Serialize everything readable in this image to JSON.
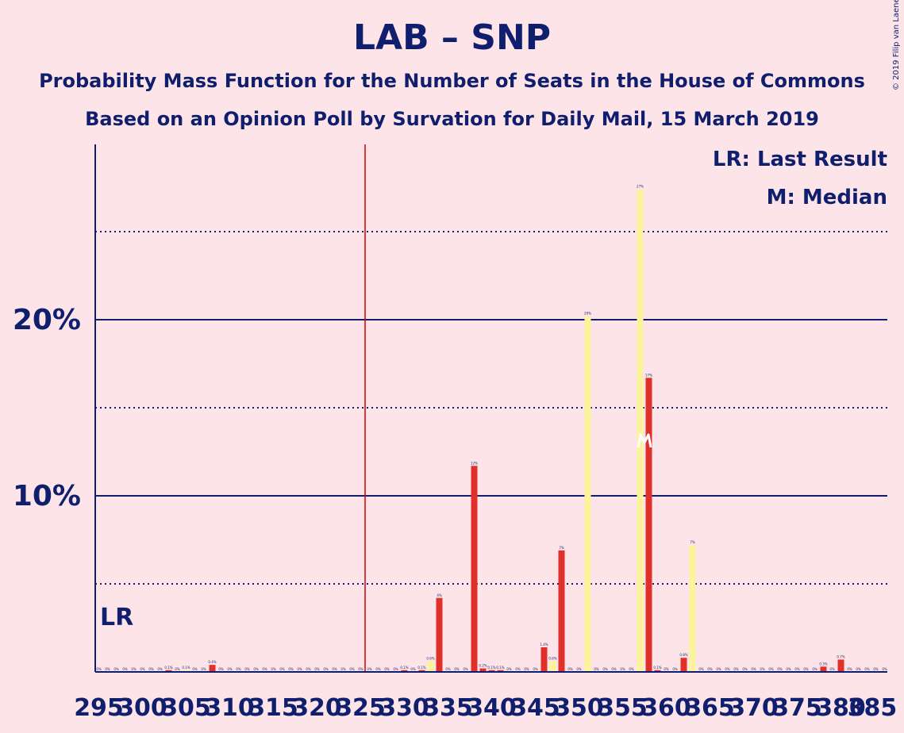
{
  "title": "LAB – SNP",
  "subtitle": "Probability Mass Function for the Number of Seats in the House of Commons",
  "subtitle2": "Based on an Opinion Poll by Survation for Daily Mail, 15 March 2019",
  "copyright": "© 2019 Filip van Laenen",
  "legend": {
    "last_result": "LR: Last Result",
    "median": "M: Median"
  },
  "lr_marker": "LR",
  "median_marker": "M",
  "colors": {
    "background": "#fde4e8",
    "primary": "#0f1f6e",
    "red_bar": "#e0302a",
    "yellow_bar": "#fdf39a",
    "last_result_line": "#cc0000"
  },
  "chart_data": {
    "type": "bar",
    "x_range": [
      295,
      385
    ],
    "x_ticks": [
      295,
      300,
      305,
      310,
      315,
      320,
      325,
      330,
      335,
      340,
      345,
      350,
      355,
      360,
      365,
      370,
      375,
      380,
      385
    ],
    "y_ticks": [
      {
        "value": 10,
        "label": "10%"
      },
      {
        "value": 20,
        "label": "20%"
      }
    ],
    "y_range": [
      0,
      30
    ],
    "grid": true,
    "gridlines_minor": [
      5,
      15,
      25
    ],
    "last_result": 326,
    "median": 358,
    "series": [
      {
        "name": "LAB",
        "color": "#e0302a",
        "values": [
          {
            "x": 303,
            "y": 0.1,
            "label": "0.1%"
          },
          {
            "x": 308,
            "y": 0.4,
            "label": "0.4%"
          },
          {
            "x": 330,
            "y": 0.1,
            "label": "0.1%"
          },
          {
            "x": 332,
            "y": 0.1,
            "label": "0.1%"
          },
          {
            "x": 334,
            "y": 4.2,
            "label": "4%"
          },
          {
            "x": 338,
            "y": 11.7,
            "label": "12%"
          },
          {
            "x": 339,
            "y": 0.2,
            "label": "0.2%"
          },
          {
            "x": 340,
            "y": 0.1,
            "label": "0.1%"
          },
          {
            "x": 341,
            "y": 0.1,
            "label": "0.1%"
          },
          {
            "x": 346,
            "y": 1.4,
            "label": "1.4%"
          },
          {
            "x": 348,
            "y": 6.9,
            "label": "7%"
          },
          {
            "x": 358,
            "y": 16.7,
            "label": "17%"
          },
          {
            "x": 359,
            "y": 0.1,
            "label": "0.1%"
          },
          {
            "x": 362,
            "y": 0.8,
            "label": "0.8%"
          },
          {
            "x": 378,
            "y": 0.3,
            "label": "0.3%"
          },
          {
            "x": 380,
            "y": 0.7,
            "label": "0.7%"
          }
        ]
      },
      {
        "name": "SNP",
        "color": "#fdf39a",
        "values": [
          {
            "x": 305,
            "y": 0.1,
            "label": "0.1%"
          },
          {
            "x": 333,
            "y": 0.6,
            "label": "0.6%"
          },
          {
            "x": 347,
            "y": 0.6,
            "label": "0.6%"
          },
          {
            "x": 351,
            "y": 20.2,
            "label": "20%"
          },
          {
            "x": 357,
            "y": 27.4,
            "label": "27%"
          },
          {
            "x": 363,
            "y": 7.2,
            "label": "7%"
          }
        ]
      }
    ],
    "zero_label": "0%"
  }
}
